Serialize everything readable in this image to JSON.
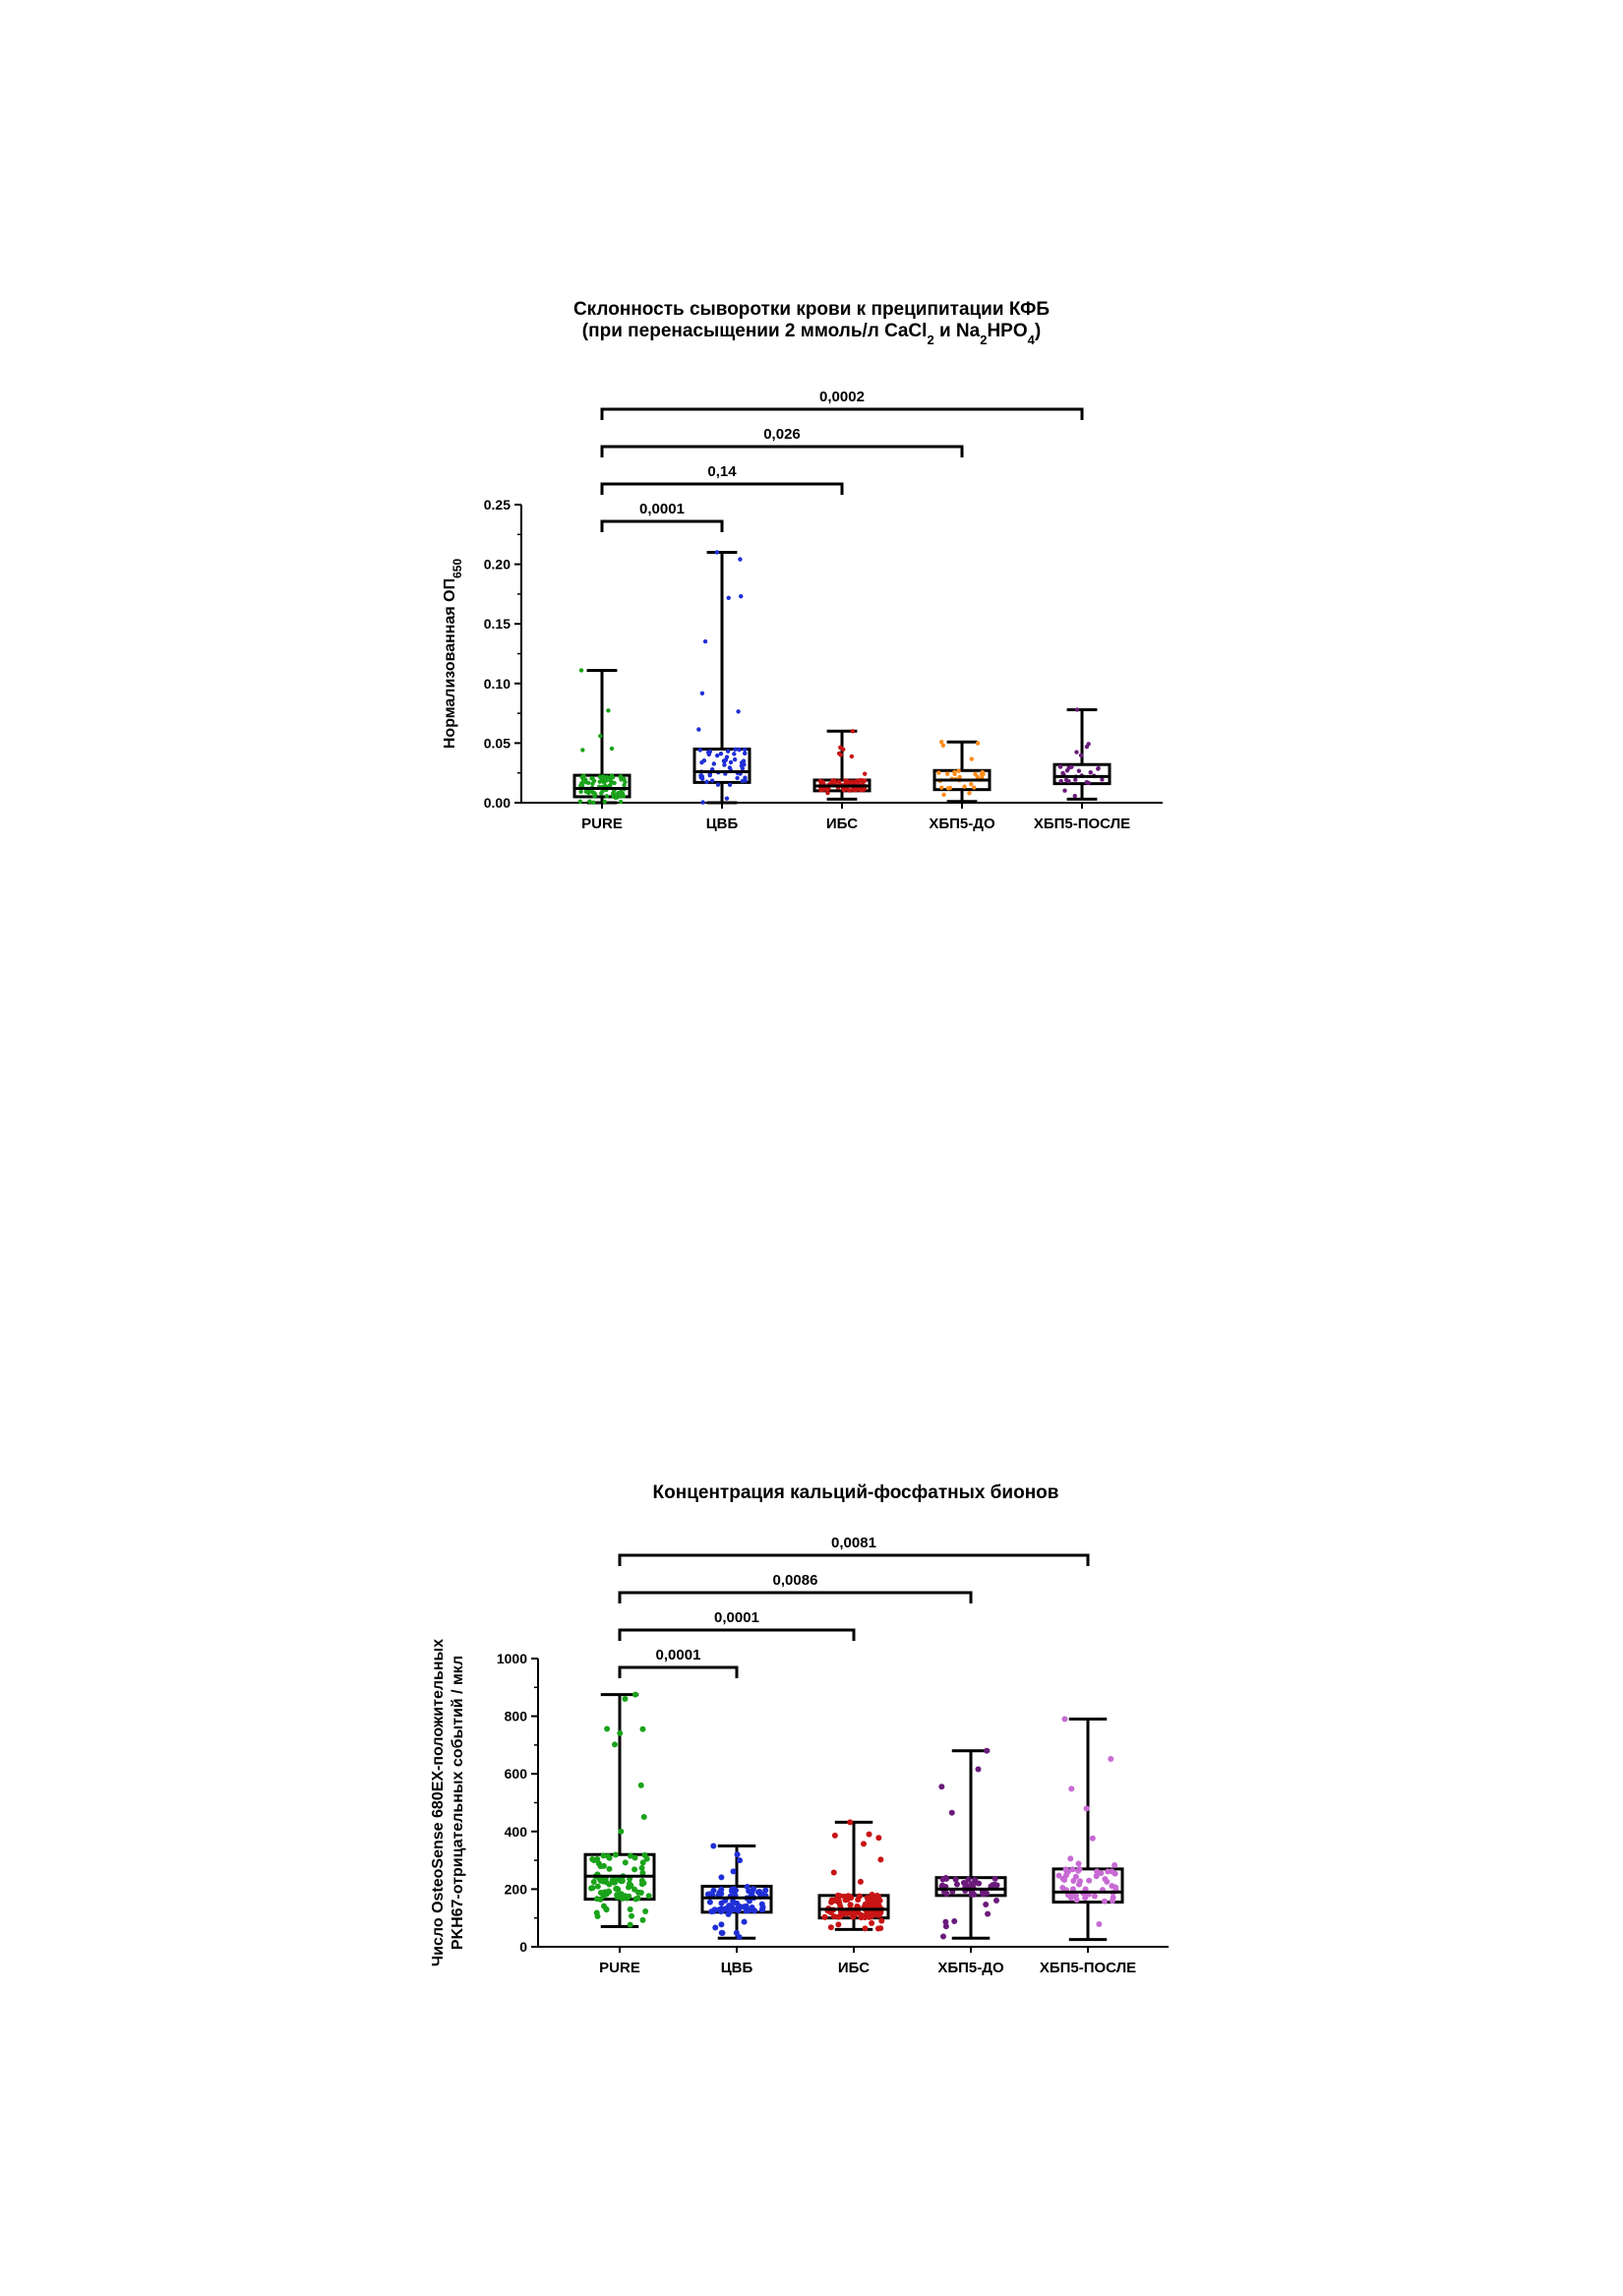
{
  "chart_data": [
    {
      "type": "box",
      "title_line1": "Склонность сыворотки крови к преципитации КФБ",
      "title_line2_parts": [
        "(при перенасыщении 2 ммоль/л CaCl",
        "2",
        " и Na",
        "2",
        "HPO",
        "4",
        ")"
      ],
      "ylabel_main": "Нормализованная ОП",
      "ylabel_sub": "650",
      "ylim": [
        0,
        0.25
      ],
      "yticks": [
        "0.00",
        "0.05",
        "0.10",
        "0.15",
        "0.20",
        "0.25"
      ],
      "ytick_values": [
        0,
        0.05,
        0.1,
        0.15,
        0.2,
        0.25
      ],
      "categories": [
        "PURE",
        "ЦВБ",
        "ИБС",
        "ХБП5-ДО",
        "ХБП5-ПОСЛЕ"
      ],
      "colors": [
        "#1aa31a",
        "#1f2fd6",
        "#c81414",
        "#ff8c1a",
        "#6a1b7a"
      ],
      "boxes": [
        {
          "min": 0.0,
          "q1": 0.005,
          "median": 0.012,
          "q3": 0.023,
          "max": 0.111,
          "n": 90
        },
        {
          "min": 0.0,
          "q1": 0.017,
          "median": 0.026,
          "q3": 0.045,
          "max": 0.21,
          "n": 60
        },
        {
          "min": 0.003,
          "q1": 0.01,
          "median": 0.014,
          "q3": 0.019,
          "max": 0.06,
          "n": 95
        },
        {
          "min": 0.001,
          "q1": 0.011,
          "median": 0.019,
          "q3": 0.027,
          "max": 0.051,
          "n": 30
        },
        {
          "min": 0.003,
          "q1": 0.016,
          "median": 0.022,
          "q3": 0.032,
          "max": 0.078,
          "n": 28
        }
      ],
      "comparisons": [
        {
          "from": "PURE",
          "to": "ЦВБ",
          "p": "0,0001"
        },
        {
          "from": "PURE",
          "to": "ИБС",
          "p": "0,14"
        },
        {
          "from": "PURE",
          "to": "ХБП5-ДО",
          "p": "0,026"
        },
        {
          "from": "PURE",
          "to": "ХБП5-ПОСЛЕ",
          "p": "0,0002"
        }
      ]
    },
    {
      "type": "box",
      "title_line1": "Концентрация кальций-фосфатных бионов",
      "title_line2_parts": [],
      "ylabel_line1": "Число OsteoSense 680EX-положительных",
      "ylabel_line2": "PKH67-отрицательных событий / мкл",
      "ylim": [
        0,
        1000
      ],
      "yticks": [
        "0",
        "200",
        "400",
        "600",
        "800",
        "1000"
      ],
      "ytick_values": [
        0,
        200,
        400,
        600,
        800,
        1000
      ],
      "categories": [
        "PURE",
        "ЦВБ",
        "ИБС",
        "ХБП5-ДО",
        "ХБП5-ПОСЛЕ"
      ],
      "colors": [
        "#1aa31a",
        "#1f2fd6",
        "#c81414",
        "#6a1b7a",
        "#c86ad4"
      ],
      "boxes": [
        {
          "min": 70,
          "q1": 165,
          "median": 245,
          "q3": 320,
          "max": 875,
          "n": 95
        },
        {
          "min": 30,
          "q1": 120,
          "median": 170,
          "q3": 210,
          "max": 350,
          "n": 80
        },
        {
          "min": 60,
          "q1": 100,
          "median": 130,
          "q3": 178,
          "max": 432,
          "n": 110
        },
        {
          "min": 30,
          "q1": 178,
          "median": 200,
          "q3": 240,
          "max": 680,
          "n": 50
        },
        {
          "min": 25,
          "q1": 155,
          "median": 190,
          "q3": 270,
          "max": 790,
          "n": 55
        }
      ],
      "comparisons": [
        {
          "from": "PURE",
          "to": "ЦВБ",
          "p": "0,0001"
        },
        {
          "from": "PURE",
          "to": "ИБС",
          "p": "0,0001"
        },
        {
          "from": "PURE",
          "to": "ХБП5-ДО",
          "p": "0,0086"
        },
        {
          "from": "PURE",
          "to": "ХБП5-ПОСЛЕ",
          "p": "0,0081"
        }
      ]
    }
  ]
}
